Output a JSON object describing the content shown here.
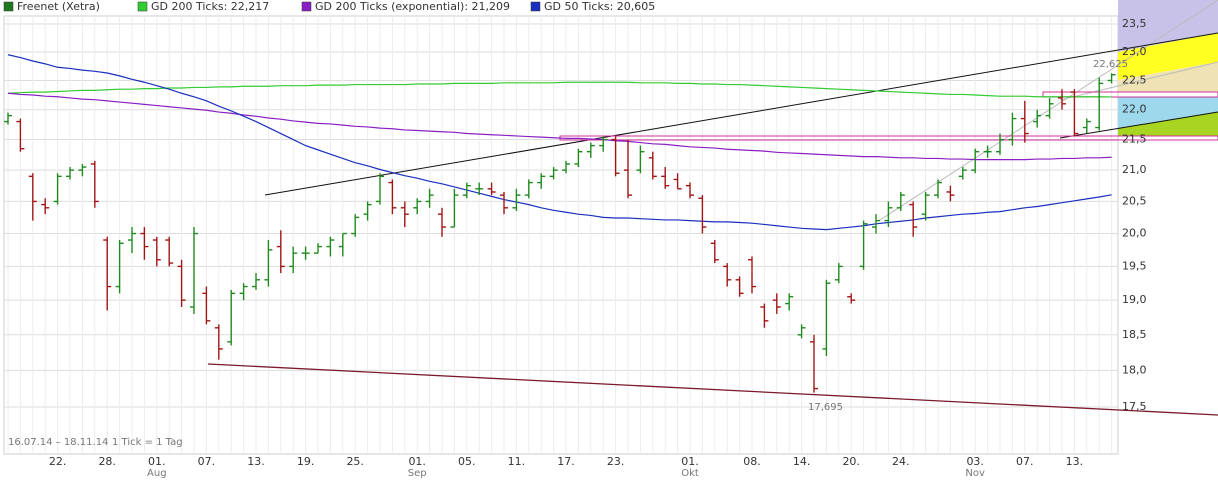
{
  "chart_data": {
    "type": "ohlc",
    "log": true,
    "grid": true,
    "up_color": "#1f8a1f",
    "down_color": "#a31515",
    "ylim": [
      17.5,
      23.5
    ],
    "yticks": [
      {
        "value": 17.5,
        "label": "17,5"
      },
      {
        "value": 18,
        "label": "18,0"
      },
      {
        "value": 18.5,
        "label": "18,5"
      },
      {
        "value": 19,
        "label": "19,0"
      },
      {
        "value": 19.5,
        "label": "19,5"
      },
      {
        "value": 20,
        "label": "20,0"
      },
      {
        "value": 20.5,
        "label": "20,5"
      },
      {
        "value": 21,
        "label": "21,0"
      },
      {
        "value": 21.5,
        "label": "21,5"
      },
      {
        "value": 22,
        "label": "22,0"
      },
      {
        "value": 22.5,
        "label": "22,5"
      },
      {
        "value": 23,
        "label": "23,0"
      },
      {
        "value": 23.5,
        "label": "23,5"
      }
    ],
    "categories": [
      null,
      null,
      null,
      null,
      "22.",
      null,
      null,
      null,
      "28.",
      null,
      null,
      null,
      "01.",
      null,
      null,
      null,
      "07.",
      null,
      null,
      null,
      "13.",
      null,
      null,
      null,
      "19.",
      null,
      null,
      null,
      "25.",
      null,
      null,
      null,
      null,
      "01.",
      null,
      null,
      null,
      "05.",
      null,
      null,
      null,
      "11.",
      null,
      null,
      null,
      "17.",
      null,
      null,
      null,
      "23.",
      null,
      null,
      null,
      null,
      null,
      "01.",
      null,
      null,
      null,
      null,
      "08.",
      null,
      null,
      null,
      "14.",
      null,
      null,
      null,
      "20.",
      null,
      null,
      null,
      "24.",
      null,
      null,
      null,
      null,
      null,
      "03.",
      null,
      null,
      null,
      "07.",
      null,
      null,
      null,
      "13.",
      null,
      null,
      null
    ],
    "months": [
      null,
      null,
      null,
      null,
      null,
      null,
      null,
      null,
      null,
      null,
      null,
      null,
      "Aug",
      null,
      null,
      null,
      null,
      null,
      null,
      null,
      null,
      null,
      null,
      null,
      null,
      null,
      null,
      null,
      null,
      null,
      null,
      null,
      null,
      "Sep",
      null,
      null,
      null,
      null,
      null,
      null,
      null,
      null,
      null,
      null,
      null,
      null,
      null,
      null,
      null,
      null,
      null,
      null,
      null,
      null,
      null,
      "Okt",
      null,
      null,
      null,
      null,
      null,
      null,
      null,
      null,
      null,
      null,
      null,
      null,
      null,
      null,
      null,
      null,
      null,
      null,
      null,
      null,
      null,
      null,
      "Nov",
      null,
      null,
      null,
      null,
      null,
      null,
      null,
      null,
      null,
      null,
      null
    ],
    "price": {
      "name": "Freenet (Xetra)",
      "color": "#1f7a1f",
      "open": [
        21.8,
        21.8,
        20.9,
        20.45,
        20.5,
        20.9,
        21.0,
        21.1,
        19.9,
        19.2,
        19.9,
        20.0,
        19.9,
        19.9,
        19.5,
        18.9,
        19.1,
        18.6,
        18.4,
        19.1,
        19.2,
        19.3,
        19.8,
        19.5,
        19.7,
        19.7,
        19.8,
        19.8,
        20.0,
        20.3,
        20.5,
        20.8,
        20.4,
        20.4,
        20.5,
        20.3,
        20.1,
        20.6,
        20.7,
        20.7,
        20.6,
        20.4,
        20.6,
        20.8,
        20.9,
        21.0,
        21.1,
        21.3,
        21.4,
        21.5,
        21.0,
        21.0,
        21.2,
        20.9,
        20.85,
        20.75,
        20.55,
        19.85,
        19.5,
        19.3,
        19.6,
        18.9,
        19.0,
        18.95,
        18.5,
        18.4,
        18.3,
        19.3,
        19.05,
        19.5,
        20.1,
        20.2,
        20.4,
        20.45,
        20.3,
        20.6,
        20.65,
        20.9,
        21.0,
        21.3,
        21.3,
        21.5,
        21.85,
        21.8,
        21.9,
        22.2,
        22.3,
        21.7,
        21.7,
        22.5
      ],
      "high": [
        21.95,
        21.85,
        20.95,
        20.55,
        20.95,
        21.05,
        21.1,
        21.15,
        19.95,
        19.9,
        20.1,
        20.1,
        19.95,
        19.95,
        19.6,
        20.1,
        19.2,
        18.65,
        19.15,
        19.25,
        19.4,
        19.9,
        20.05,
        19.8,
        19.8,
        19.85,
        19.95,
        20.0,
        20.3,
        20.5,
        20.95,
        20.85,
        20.5,
        20.55,
        20.7,
        20.4,
        20.7,
        20.8,
        20.8,
        20.8,
        20.65,
        20.7,
        20.85,
        20.95,
        21.05,
        21.15,
        21.35,
        21.45,
        21.55,
        21.55,
        21.5,
        21.4,
        21.3,
        21.05,
        20.95,
        20.8,
        20.6,
        19.9,
        19.55,
        19.35,
        19.65,
        18.95,
        19.1,
        19.1,
        18.65,
        18.5,
        19.3,
        19.55,
        19.1,
        20.2,
        20.3,
        20.5,
        20.65,
        20.5,
        20.65,
        20.85,
        20.75,
        21.05,
        21.35,
        21.4,
        21.6,
        21.95,
        22.15,
        22.0,
        22.2,
        22.35,
        22.35,
        21.85,
        22.55,
        22.625
      ],
      "low": [
        21.75,
        21.3,
        20.2,
        20.3,
        20.45,
        20.85,
        20.9,
        20.4,
        18.85,
        19.1,
        19.7,
        19.6,
        19.5,
        19.5,
        18.9,
        18.8,
        18.65,
        18.15,
        18.35,
        19.0,
        19.15,
        19.2,
        19.4,
        19.4,
        19.6,
        19.7,
        19.65,
        19.65,
        19.95,
        20.2,
        20.45,
        20.3,
        20.1,
        20.3,
        20.4,
        19.95,
        20.1,
        20.55,
        20.6,
        20.6,
        20.3,
        20.35,
        20.55,
        20.7,
        20.85,
        20.95,
        21.05,
        21.2,
        21.3,
        20.9,
        20.55,
        20.95,
        20.85,
        20.7,
        20.7,
        20.55,
        20.0,
        19.55,
        19.2,
        19.05,
        19.1,
        18.6,
        18.8,
        18.85,
        18.45,
        17.695,
        18.2,
        19.25,
        18.95,
        19.45,
        20.0,
        20.1,
        20.35,
        19.95,
        20.2,
        20.55,
        20.5,
        20.85,
        20.95,
        21.2,
        21.25,
        21.4,
        21.45,
        21.7,
        21.85,
        22.0,
        21.55,
        21.6,
        21.65,
        22.45
      ],
      "close": [
        21.9,
        21.35,
        20.5,
        20.4,
        20.9,
        21.0,
        21.05,
        20.5,
        19.2,
        19.85,
        20.0,
        19.8,
        19.6,
        19.55,
        19.0,
        20.0,
        18.7,
        18.3,
        19.1,
        19.2,
        19.3,
        19.75,
        19.5,
        19.7,
        19.7,
        19.8,
        19.9,
        20.0,
        20.25,
        20.45,
        20.9,
        20.4,
        20.3,
        20.5,
        20.6,
        20.1,
        20.6,
        20.75,
        20.7,
        20.65,
        20.4,
        20.6,
        20.8,
        20.9,
        21.0,
        21.1,
        21.3,
        21.4,
        21.5,
        20.95,
        20.6,
        21.3,
        20.9,
        20.75,
        20.7,
        20.6,
        20.1,
        19.6,
        19.3,
        19.1,
        19.2,
        18.7,
        18.9,
        19.05,
        18.6,
        17.75,
        19.25,
        19.5,
        19.0,
        20.15,
        20.2,
        20.4,
        20.6,
        20.1,
        20.6,
        20.8,
        20.6,
        21.0,
        21.3,
        21.3,
        21.5,
        21.85,
        21.6,
        21.9,
        22.1,
        22.1,
        21.6,
        21.8,
        22.45,
        22.6
      ]
    },
    "series": [
      {
        "name": "GD 200 Ticks: 22,217",
        "color": "#33cc33",
        "values": [
          22.28,
          22.29,
          22.3,
          22.3,
          22.31,
          22.32,
          22.33,
          22.33,
          22.34,
          22.35,
          22.35,
          22.36,
          22.36,
          22.37,
          22.37,
          22.38,
          22.38,
          22.39,
          22.39,
          22.4,
          22.4,
          22.4,
          22.41,
          22.41,
          22.41,
          22.42,
          22.42,
          22.42,
          22.43,
          22.43,
          22.43,
          22.43,
          22.43,
          22.44,
          22.44,
          22.44,
          22.45,
          22.45,
          22.45,
          22.45,
          22.46,
          22.46,
          22.46,
          22.46,
          22.46,
          22.47,
          22.47,
          22.47,
          22.47,
          22.47,
          22.47,
          22.46,
          22.46,
          22.46,
          22.45,
          22.45,
          22.44,
          22.44,
          22.43,
          22.43,
          22.42,
          22.41,
          22.4,
          22.39,
          22.38,
          22.37,
          22.36,
          22.35,
          22.34,
          22.33,
          22.32,
          22.31,
          22.3,
          22.29,
          22.28,
          22.27,
          22.26,
          22.26,
          22.25,
          22.24,
          22.23,
          22.23,
          22.23,
          22.22,
          22.22,
          22.22,
          22.22,
          22.22,
          22.22,
          22.217
        ]
      },
      {
        "name": "GD 200 Ticks (exponential): 21,209",
        "color": "#8a1fc4",
        "values": [
          22.28,
          22.26,
          22.25,
          22.23,
          22.22,
          22.2,
          22.18,
          22.17,
          22.15,
          22.13,
          22.11,
          22.09,
          22.07,
          22.05,
          22.03,
          22.01,
          21.99,
          21.96,
          21.94,
          21.91,
          21.89,
          21.86,
          21.84,
          21.81,
          21.79,
          21.77,
          21.76,
          21.74,
          21.72,
          21.71,
          21.69,
          21.68,
          21.66,
          21.65,
          21.64,
          21.63,
          21.62,
          21.6,
          21.59,
          21.58,
          21.57,
          21.56,
          21.55,
          21.54,
          21.53,
          21.52,
          21.52,
          21.51,
          21.5,
          21.48,
          21.47,
          21.45,
          21.43,
          21.42,
          21.4,
          21.38,
          21.37,
          21.36,
          21.34,
          21.33,
          21.32,
          21.31,
          21.29,
          21.28,
          21.27,
          21.26,
          21.25,
          21.24,
          21.23,
          21.22,
          21.22,
          21.21,
          21.2,
          21.2,
          21.19,
          21.19,
          21.18,
          21.18,
          21.17,
          21.17,
          21.17,
          21.17,
          21.17,
          21.18,
          21.18,
          21.19,
          21.19,
          21.2,
          21.2,
          21.209
        ]
      },
      {
        "name": "GD 50 Ticks: 20,605",
        "color": "#1a2fbf",
        "values": [
          22.95,
          22.9,
          22.84,
          22.79,
          22.73,
          22.71,
          22.68,
          22.66,
          22.63,
          22.58,
          22.52,
          22.47,
          22.41,
          22.35,
          22.28,
          22.22,
          22.15,
          22.06,
          21.98,
          21.89,
          21.8,
          21.7,
          21.6,
          21.5,
          21.4,
          21.33,
          21.26,
          21.19,
          21.12,
          21.07,
          21.01,
          20.96,
          20.91,
          20.87,
          20.82,
          20.78,
          20.73,
          20.68,
          20.63,
          20.58,
          20.53,
          20.49,
          20.45,
          20.4,
          20.36,
          20.33,
          20.3,
          20.28,
          20.25,
          20.24,
          20.24,
          20.23,
          20.22,
          20.21,
          20.21,
          20.2,
          20.19,
          20.18,
          20.18,
          20.17,
          20.16,
          20.14,
          20.12,
          20.1,
          20.08,
          20.07,
          20.06,
          20.08,
          20.1,
          20.12,
          20.15,
          20.17,
          20.19,
          20.21,
          20.24,
          20.26,
          20.28,
          20.3,
          20.31,
          20.33,
          20.34,
          20.37,
          20.4,
          20.42,
          20.45,
          20.48,
          20.51,
          20.54,
          20.57,
          20.605
        ]
      }
    ],
    "annotations": [
      "22,625",
      "17,695"
    ],
    "period": "16.07.14 – 18.11.14",
    "tick_note": "1 Tick = 1 Tag"
  }
}
